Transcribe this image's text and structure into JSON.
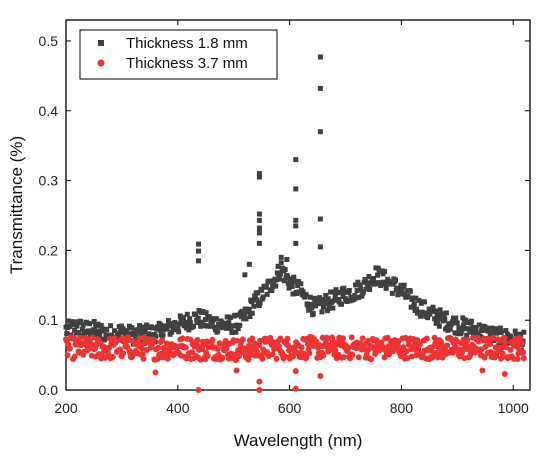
{
  "chart_data": {
    "type": "scatter",
    "title": "",
    "xlabel": "Wavelength (nm)",
    "ylabel": "Transmittance (%)",
    "xlim": [
      200,
      1030
    ],
    "ylim": [
      0.0,
      0.53
    ],
    "xticks": [
      200,
      400,
      600,
      800,
      1000
    ],
    "xtick_labels": [
      "200",
      "400",
      "600",
      "800",
      "1000"
    ],
    "yticks": [
      0.0,
      0.1,
      0.2,
      0.3,
      0.4,
      0.5
    ],
    "ytick_labels": [
      "0.0",
      "0.1",
      "0.2",
      "0.3",
      "0.4",
      "0.5"
    ],
    "grid": false,
    "legend": "top-left",
    "series": [
      {
        "name": "Thickness 1.8 mm",
        "marker": "square",
        "color": "#404040",
        "points": [
          [
            205,
            0.086
          ],
          [
            215,
            0.09
          ],
          [
            225,
            0.089
          ],
          [
            235,
            0.086
          ],
          [
            245,
            0.087
          ],
          [
            255,
            0.085
          ],
          [
            265,
            0.083
          ],
          [
            275,
            0.081
          ],
          [
            285,
            0.08
          ],
          [
            295,
            0.083
          ],
          [
            305,
            0.082
          ],
          [
            315,
            0.079
          ],
          [
            325,
            0.078
          ],
          [
            335,
            0.08
          ],
          [
            345,
            0.082
          ],
          [
            355,
            0.081
          ],
          [
            365,
            0.082
          ],
          [
            375,
            0.086
          ],
          [
            385,
            0.089
          ],
          [
            395,
            0.092
          ],
          [
            405,
            0.094
          ],
          [
            415,
            0.098
          ],
          [
            425,
            0.1
          ],
          [
            435,
            0.104
          ],
          [
            445,
            0.1
          ],
          [
            455,
            0.097
          ],
          [
            465,
            0.096
          ],
          [
            475,
            0.094
          ],
          [
            485,
            0.093
          ],
          [
            495,
            0.094
          ],
          [
            505,
            0.095
          ],
          [
            515,
            0.1
          ],
          [
            525,
            0.11
          ],
          [
            535,
            0.125
          ],
          [
            545,
            0.13
          ],
          [
            555,
            0.14
          ],
          [
            565,
            0.15
          ],
          [
            575,
            0.16
          ],
          [
            585,
            0.175
          ],
          [
            595,
            0.16
          ],
          [
            605,
            0.15
          ],
          [
            615,
            0.145
          ],
          [
            625,
            0.135
          ],
          [
            635,
            0.125
          ],
          [
            645,
            0.118
          ],
          [
            655,
            0.12
          ],
          [
            665,
            0.125
          ],
          [
            675,
            0.128
          ],
          [
            685,
            0.132
          ],
          [
            695,
            0.136
          ],
          [
            705,
            0.138
          ],
          [
            715,
            0.14
          ],
          [
            725,
            0.145
          ],
          [
            735,
            0.15
          ],
          [
            745,
            0.158
          ],
          [
            755,
            0.165
          ],
          [
            765,
            0.16
          ],
          [
            775,
            0.155
          ],
          [
            785,
            0.15
          ],
          [
            795,
            0.145
          ],
          [
            805,
            0.138
          ],
          [
            815,
            0.13
          ],
          [
            825,
            0.123
          ],
          [
            835,
            0.118
          ],
          [
            845,
            0.112
          ],
          [
            855,
            0.108
          ],
          [
            865,
            0.105
          ],
          [
            875,
            0.1
          ],
          [
            885,
            0.098
          ],
          [
            895,
            0.095
          ],
          [
            905,
            0.092
          ],
          [
            915,
            0.09
          ],
          [
            925,
            0.088
          ],
          [
            935,
            0.085
          ],
          [
            945,
            0.083
          ],
          [
            955,
            0.08
          ],
          [
            965,
            0.078
          ],
          [
            975,
            0.076
          ],
          [
            985,
            0.075
          ],
          [
            995,
            0.074
          ],
          [
            1005,
            0.073
          ],
          [
            1015,
            0.07
          ]
        ],
        "outliers": [
          [
            437,
            0.209
          ],
          [
            437,
            0.199
          ],
          [
            437,
            0.185
          ],
          [
            546,
            0.31
          ],
          [
            546,
            0.305
          ],
          [
            546,
            0.252
          ],
          [
            546,
            0.243
          ],
          [
            546,
            0.232
          ],
          [
            546,
            0.225
          ],
          [
            546,
            0.21
          ],
          [
            611,
            0.33
          ],
          [
            611,
            0.288
          ],
          [
            611,
            0.243
          ],
          [
            611,
            0.235
          ],
          [
            611,
            0.21
          ],
          [
            655,
            0.477
          ],
          [
            655,
            0.432
          ],
          [
            655,
            0.37
          ],
          [
            655,
            0.245
          ],
          [
            655,
            0.205
          ],
          [
            520,
            0.165
          ],
          [
            528,
            0.18
          ],
          [
            585,
            0.19
          ],
          [
            595,
            0.187
          ]
        ]
      },
      {
        "name": "Thickness 3.7 mm",
        "marker": "circle",
        "color": "#ee3333",
        "points": [
          [
            205,
            0.06
          ],
          [
            225,
            0.06
          ],
          [
            245,
            0.06
          ],
          [
            265,
            0.059
          ],
          [
            285,
            0.06
          ],
          [
            305,
            0.061
          ],
          [
            325,
            0.06
          ],
          [
            345,
            0.06
          ],
          [
            365,
            0.059
          ],
          [
            385,
            0.06
          ],
          [
            405,
            0.06
          ],
          [
            425,
            0.06
          ],
          [
            445,
            0.058
          ],
          [
            465,
            0.06
          ],
          [
            485,
            0.059
          ],
          [
            505,
            0.058
          ],
          [
            525,
            0.058
          ],
          [
            545,
            0.059
          ],
          [
            565,
            0.06
          ],
          [
            585,
            0.06
          ],
          [
            605,
            0.06
          ],
          [
            625,
            0.061
          ],
          [
            645,
            0.06
          ],
          [
            665,
            0.061
          ],
          [
            685,
            0.06
          ],
          [
            705,
            0.06
          ],
          [
            725,
            0.061
          ],
          [
            745,
            0.06
          ],
          [
            765,
            0.06
          ],
          [
            785,
            0.061
          ],
          [
            805,
            0.061
          ],
          [
            825,
            0.06
          ],
          [
            845,
            0.06
          ],
          [
            865,
            0.06
          ],
          [
            885,
            0.06
          ],
          [
            905,
            0.06
          ],
          [
            925,
            0.06
          ],
          [
            945,
            0.06
          ],
          [
            965,
            0.06
          ],
          [
            985,
            0.06
          ],
          [
            1005,
            0.06
          ],
          [
            1015,
            0.06
          ]
        ],
        "outliers": [
          [
            437,
            0.0
          ],
          [
            546,
            0.012
          ],
          [
            546,
            0.0
          ],
          [
            611,
            0.002
          ],
          [
            611,
            0.027
          ],
          [
            655,
            0.02
          ],
          [
            505,
            0.028
          ],
          [
            360,
            0.025
          ],
          [
            945,
            0.028
          ],
          [
            985,
            0.023
          ]
        ]
      }
    ]
  }
}
